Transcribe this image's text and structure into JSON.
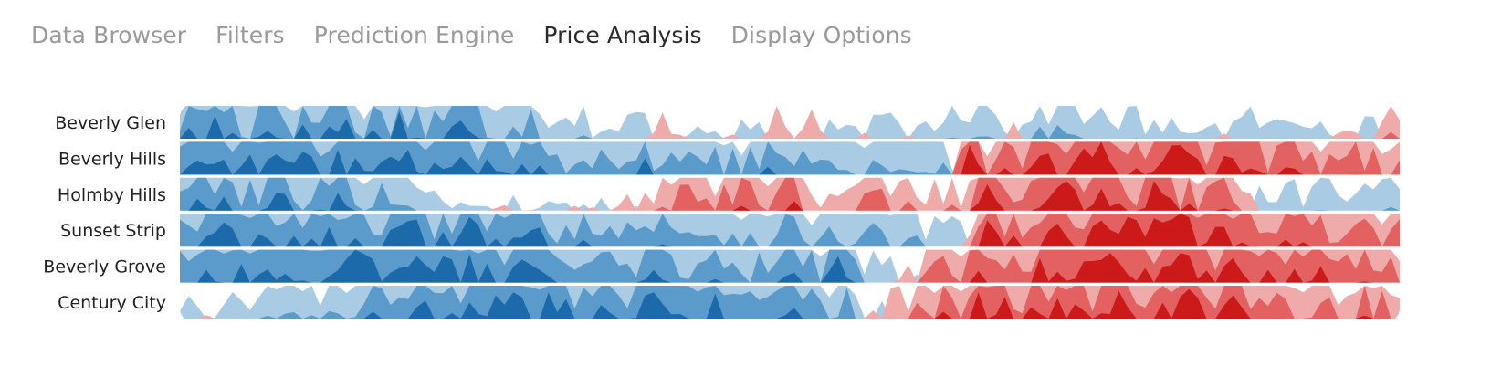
{
  "tabs": [
    {
      "label": "Data Browser",
      "active": false
    },
    {
      "label": "Filters",
      "active": false
    },
    {
      "label": "Prediction Engine",
      "active": false
    },
    {
      "label": "Price Analysis",
      "active": true
    },
    {
      "label": "Display Options",
      "active": false
    }
  ],
  "colors": {
    "pos": [
      "#a9cbe3",
      "#5a9bcb",
      "#1d6aaa"
    ],
    "neg": [
      "#efaaaa",
      "#e36161",
      "#cc1a1a"
    ]
  },
  "chart_data": {
    "type": "horizon",
    "bands": 3,
    "band_size": 1,
    "x_points": 140,
    "series": [
      {
        "name": "Beverly Glen",
        "segments": [
          [
            0,
            2,
            1.2
          ],
          [
            20,
            1.9,
            1.6
          ],
          [
            30,
            1.85,
            1.3
          ],
          [
            40,
            1.5,
            1.1
          ],
          [
            46,
            0.5,
            0.8
          ],
          [
            60,
            0.3,
            0.5
          ],
          [
            70,
            0.3,
            0.5
          ],
          [
            74,
            0.2,
            0.4
          ],
          [
            84,
            0.4,
            0.7
          ],
          [
            90,
            1.1,
            0.8
          ],
          [
            100,
            1.0,
            0.7
          ],
          [
            112,
            0.3,
            0.6
          ],
          [
            130,
            0.5,
            0.7
          ],
          [
            140,
            0.0,
            0.5
          ]
        ],
        "spikes": [
          [
            55,
            -0.8
          ],
          [
            68,
            -1.0
          ],
          [
            72,
            -0.9
          ],
          [
            95,
            -0.5
          ],
          [
            138,
            -1.2
          ]
        ]
      },
      {
        "name": "Beverly Hills",
        "segments": [
          [
            0,
            2.3,
            0.8
          ],
          [
            30,
            2.2,
            1.0
          ],
          [
            50,
            1.6,
            1.0
          ],
          [
            65,
            1.4,
            0.9
          ],
          [
            70,
            1.9,
            0.9
          ],
          [
            86,
            0.8,
            1.0
          ],
          [
            95,
            -1.8,
            1.2
          ],
          [
            110,
            -2.2,
            1.0
          ],
          [
            125,
            -1.7,
            0.9
          ],
          [
            140,
            -1.3,
            0.9
          ]
        ],
        "spikes": [
          [
            90,
            -2.9
          ],
          [
            94,
            -2.2
          ],
          [
            103,
            -2.8
          ],
          [
            114,
            -2.9
          ],
          [
            120,
            -2.5
          ]
        ]
      },
      {
        "name": "Holmby Hills",
        "segments": [
          [
            0,
            2.0,
            0.9
          ],
          [
            15,
            1.8,
            1.0
          ],
          [
            25,
            1.4,
            0.8
          ],
          [
            30,
            0.2,
            0.4
          ],
          [
            50,
            0.1,
            0.5
          ],
          [
            58,
            -1.2,
            0.9
          ],
          [
            70,
            -1.6,
            0.9
          ],
          [
            72,
            -0.2,
            0.4
          ],
          [
            78,
            -1.3,
            1.0
          ],
          [
            86,
            -0.5,
            0.9
          ],
          [
            95,
            -2.0,
            1.0
          ],
          [
            118,
            -1.6,
            1.2
          ],
          [
            125,
            0.7,
            0.7
          ],
          [
            140,
            0.9,
            0.8
          ]
        ],
        "spikes": [
          [
            92,
            -2.8
          ],
          [
            101,
            -2.9
          ],
          [
            111,
            -2.9
          ]
        ]
      },
      {
        "name": "Sunset Strip",
        "segments": [
          [
            0,
            2.1,
            0.8
          ],
          [
            35,
            2.0,
            0.9
          ],
          [
            45,
            1.8,
            0.8
          ],
          [
            60,
            1.4,
            0.8
          ],
          [
            80,
            1.3,
            0.8
          ],
          [
            87,
            0.6,
            0.8
          ],
          [
            95,
            -2.0,
            1.1
          ],
          [
            112,
            -2.4,
            0.9
          ],
          [
            125,
            -1.8,
            0.9
          ],
          [
            140,
            -1.4,
            0.9
          ]
        ],
        "spikes": [
          [
            33,
            2.9
          ],
          [
            92,
            -2.8
          ],
          [
            100,
            -2.7
          ],
          [
            108,
            -2.9
          ],
          [
            114,
            -3.0
          ],
          [
            118,
            -2.6
          ]
        ]
      },
      {
        "name": "Beverly Grove",
        "segments": [
          [
            0,
            2.1,
            0.6
          ],
          [
            20,
            2.4,
            0.7
          ],
          [
            40,
            2.2,
            0.8
          ],
          [
            55,
            1.8,
            0.8
          ],
          [
            70,
            1.7,
            0.9
          ],
          [
            80,
            0.9,
            0.9
          ],
          [
            87,
            -1.6,
            1.1
          ],
          [
            100,
            -2.2,
            0.9
          ],
          [
            120,
            -2.1,
            0.9
          ],
          [
            140,
            -1.3,
            0.8
          ]
        ],
        "spikes": [
          [
            30,
            2.8
          ],
          [
            39,
            2.7
          ],
          [
            75,
            2.8
          ],
          [
            106,
            -2.9
          ],
          [
            114,
            -2.9
          ],
          [
            130,
            -2.5
          ]
        ]
      },
      {
        "name": "Century City",
        "segments": [
          [
            0,
            0.3,
            0.6
          ],
          [
            10,
            0.9,
            0.7
          ],
          [
            20,
            1.0,
            0.6
          ],
          [
            22,
            2.0,
            0.9
          ],
          [
            40,
            2.2,
            0.9
          ],
          [
            55,
            2.1,
            0.9
          ],
          [
            68,
            2.0,
            0.8
          ],
          [
            75,
            1.2,
            1.0
          ],
          [
            87,
            -1.6,
            1.2
          ],
          [
            100,
            -2.0,
            1.0
          ],
          [
            115,
            -2.1,
            1.0
          ],
          [
            125,
            -1.3,
            1.0
          ],
          [
            140,
            -1.2,
            0.9
          ]
        ],
        "spikes": [
          [
            38,
            2.8
          ],
          [
            54,
            2.8
          ],
          [
            91,
            -2.8
          ],
          [
            115,
            -2.9
          ],
          [
            120,
            -2.7
          ]
        ]
      }
    ]
  }
}
